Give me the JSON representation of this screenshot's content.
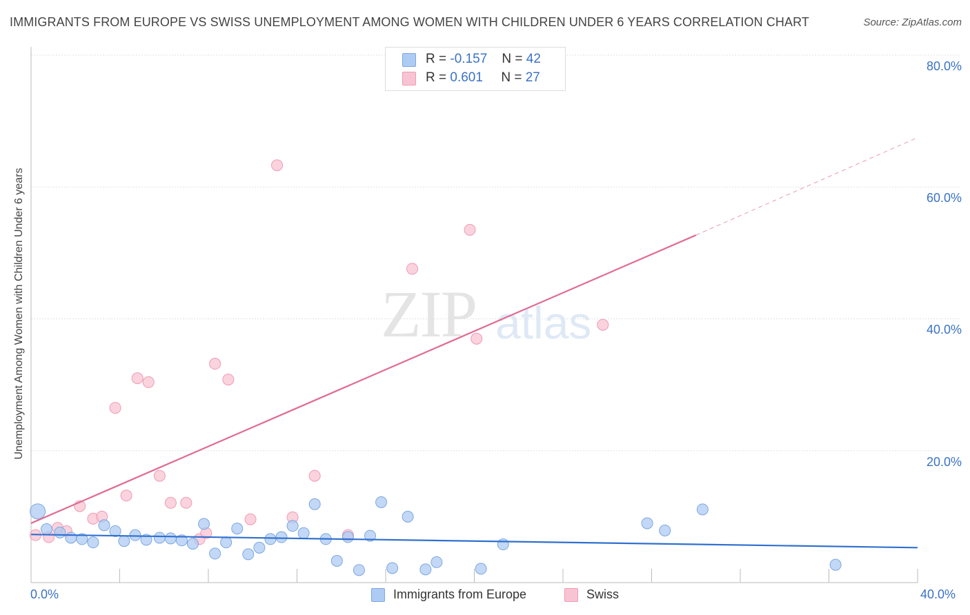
{
  "title": "IMMIGRANTS FROM EUROPE VS SWISS UNEMPLOYMENT AMONG WOMEN WITH CHILDREN UNDER 6 YEARS CORRELATION CHART",
  "source": "Source: ZipAtlas.com",
  "watermark": {
    "zip": "ZIP",
    "atlas": "atlas"
  },
  "legend": {
    "rows": [
      {
        "r_label": "R =",
        "r_value": "-0.157",
        "n_label": "N =",
        "n_value": "42",
        "color": "#aecbf3"
      },
      {
        "r_label": "R =",
        "r_value": "0.601",
        "n_label": "N =",
        "n_value": "27",
        "color": "#f8bfd0"
      }
    ]
  },
  "bottom_legend": {
    "series1": "Immigrants from Europe",
    "series2": "Swiss"
  },
  "x_ticks": {
    "left": "0.0%",
    "right": "40.0%"
  },
  "y_ticks": [
    "80.0%",
    "60.0%",
    "40.0%",
    "20.0%"
  ],
  "colors": {
    "blue_fill": "#aecbf3",
    "blue_stroke": "#7aa6e0",
    "blue_line": "#2f6fcf",
    "pink_fill": "#f8c4d3",
    "pink_stroke": "#ee9ab3",
    "pink_line": "#e06b93",
    "grid": "#e2e2e2",
    "axis": "#bbbbbb",
    "tick_text": "#3a72c4"
  },
  "chart_data": {
    "type": "scatter",
    "title": "IMMIGRANTS FROM EUROPE VS SWISS UNEMPLOYMENT AMONG WOMEN WITH CHILDREN UNDER 6 YEARS CORRELATION CHART",
    "xlabel": "",
    "ylabel": "Unemployment Among Women with Children Under 6 years",
    "xlim": [
      0,
      40
    ],
    "ylim": [
      0,
      80
    ],
    "grid": true,
    "legend_position": "top-center",
    "series": [
      {
        "name": "Immigrants from Europe",
        "color": "#aecbf3",
        "r": -0.157,
        "n": 42,
        "points": [
          [
            0.3,
            10.8
          ],
          [
            0.7,
            8.1
          ],
          [
            1.3,
            7.6
          ],
          [
            1.8,
            6.8
          ],
          [
            2.3,
            6.6
          ],
          [
            2.8,
            6.1
          ],
          [
            3.3,
            8.7
          ],
          [
            3.8,
            7.8
          ],
          [
            4.2,
            6.3
          ],
          [
            4.7,
            7.2
          ],
          [
            5.2,
            6.5
          ],
          [
            5.8,
            6.8
          ],
          [
            6.3,
            6.7
          ],
          [
            6.8,
            6.4
          ],
          [
            7.3,
            5.9
          ],
          [
            7.8,
            8.9
          ],
          [
            8.3,
            4.4
          ],
          [
            8.8,
            6.1
          ],
          [
            9.3,
            8.2
          ],
          [
            9.8,
            4.3
          ],
          [
            10.3,
            5.3
          ],
          [
            10.8,
            6.6
          ],
          [
            11.3,
            6.9
          ],
          [
            11.8,
            8.6
          ],
          [
            12.3,
            7.5
          ],
          [
            12.8,
            11.9
          ],
          [
            13.3,
            6.6
          ],
          [
            13.8,
            3.3
          ],
          [
            14.3,
            6.9
          ],
          [
            14.8,
            1.9
          ],
          [
            15.3,
            7.1
          ],
          [
            15.8,
            12.2
          ],
          [
            16.3,
            2.2
          ],
          [
            17.0,
            10.0
          ],
          [
            17.8,
            2.0
          ],
          [
            18.3,
            3.1
          ],
          [
            20.3,
            2.1
          ],
          [
            21.3,
            5.8
          ],
          [
            27.8,
            9.0
          ],
          [
            28.6,
            7.9
          ],
          [
            30.3,
            11.1
          ],
          [
            36.3,
            2.7
          ]
        ],
        "trend": {
          "x": [
            0,
            40
          ],
          "y": [
            7.3,
            5.3
          ]
        }
      },
      {
        "name": "Swiss",
        "color": "#f8c4d3",
        "r": 0.601,
        "n": 27,
        "points": [
          [
            0.2,
            7.2
          ],
          [
            0.8,
            6.9
          ],
          [
            1.2,
            8.3
          ],
          [
            1.6,
            7.8
          ],
          [
            2.2,
            11.6
          ],
          [
            2.8,
            9.7
          ],
          [
            3.2,
            10.0
          ],
          [
            3.8,
            26.5
          ],
          [
            4.3,
            13.2
          ],
          [
            4.8,
            31.0
          ],
          [
            5.3,
            30.4
          ],
          [
            5.8,
            16.2
          ],
          [
            6.3,
            12.1
          ],
          [
            7.0,
            12.1
          ],
          [
            7.6,
            6.6
          ],
          [
            7.9,
            7.5
          ],
          [
            8.3,
            33.2
          ],
          [
            8.9,
            30.8
          ],
          [
            9.9,
            9.6
          ],
          [
            11.1,
            63.3
          ],
          [
            11.8,
            9.9
          ],
          [
            12.8,
            16.2
          ],
          [
            14.3,
            7.2
          ],
          [
            17.2,
            47.6
          ],
          [
            19.8,
            53.5
          ],
          [
            20.1,
            37.0
          ],
          [
            25.8,
            39.1
          ]
        ],
        "trend": {
          "x": [
            0,
            30
          ],
          "y": [
            9.0,
            52.7
          ]
        },
        "trend_extension": {
          "x": [
            30,
            40
          ],
          "y": [
            52.7,
            67.5
          ]
        }
      }
    ]
  }
}
